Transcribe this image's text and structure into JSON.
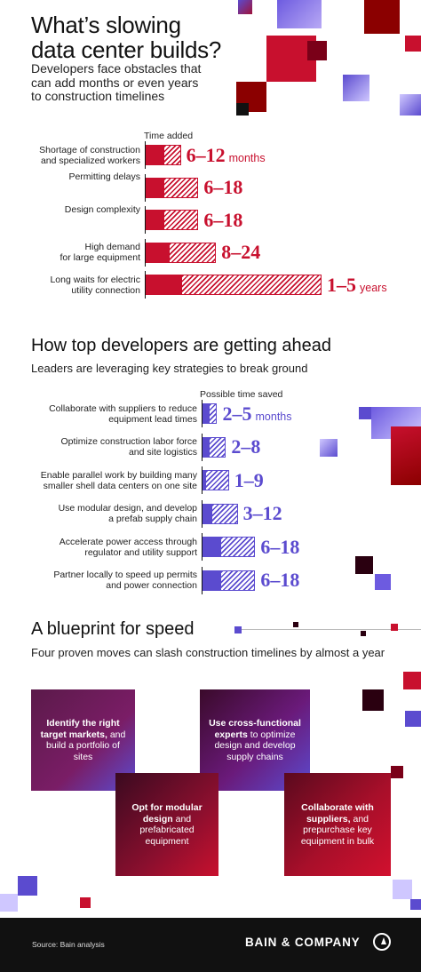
{
  "header": {
    "title_line1": "What’s slowing",
    "title_line2": "data center builds?",
    "subtitle_line1": "Developers face obstacles that",
    "subtitle_line2": "can add months or even years",
    "subtitle_line3": "to construction timelines"
  },
  "obstacles": {
    "column_header": "Time added",
    "rows": [
      {
        "label1": "Shortage of construction",
        "label2": "and specialized workers",
        "value": "6–12",
        "unit": "months",
        "min": 6,
        "max": 12
      },
      {
        "label1": "",
        "label2": "Permitting delays",
        "value": "6–18",
        "unit": "",
        "min": 6,
        "max": 18
      },
      {
        "label1": "",
        "label2": "Design complexity",
        "value": "6–18",
        "unit": "",
        "min": 6,
        "max": 18
      },
      {
        "label1": "High demand",
        "label2": "for large equipment",
        "value": "8–24",
        "unit": "",
        "min": 8,
        "max": 24
      },
      {
        "label1": "Long waits for electric",
        "label2": "utility connection",
        "value": "1–5",
        "unit": "years",
        "min": 12,
        "max": 60
      }
    ]
  },
  "strategies": {
    "title": "How top developers are getting ahead",
    "subtitle": "Leaders are leveraging key strategies to break ground",
    "column_header": "Possible time saved",
    "rows": [
      {
        "label1": "Collaborate with suppliers to reduce",
        "label2": "equipment lead times",
        "value": "2–5",
        "unit": "months",
        "min": 2,
        "max": 5
      },
      {
        "label1": "Optimize construction labor force",
        "label2": "and site logistics",
        "value": "2–8",
        "unit": "",
        "min": 2,
        "max": 8
      },
      {
        "label1": "Enable parallel work by building many",
        "label2": "smaller shell data centers on one site",
        "value": "1–9",
        "unit": "",
        "min": 1,
        "max": 9
      },
      {
        "label1": "Use modular design, and develop",
        "label2": "a prefab supply chain",
        "value": "3–12",
        "unit": "",
        "min": 3,
        "max": 12
      },
      {
        "label1": "Accelerate power access through",
        "label2": "regulator and utility support",
        "value": "6–18",
        "unit": "",
        "min": 6,
        "max": 18
      },
      {
        "label1": "Partner locally to speed up permits",
        "label2": "and power connection",
        "value": "6–18",
        "unit": "",
        "min": 6,
        "max": 18
      }
    ]
  },
  "blueprint": {
    "title": "A blueprint for speed",
    "subtitle": "Four proven moves can slash construction timelines by almost a year",
    "cards": [
      {
        "bold": "Identify the right target markets,",
        "rest": "and build a portfolio of sites"
      },
      {
        "bold": "Use cross-functional experts",
        "rest": "to optimize design and develop supply chains"
      },
      {
        "bold": "Opt for modular design",
        "rest": "and prefabricated equipment"
      },
      {
        "bold": "Collaborate with suppliers,",
        "rest": "and prepurchase key equipment in bulk"
      }
    ]
  },
  "footer": {
    "source": "Source: Bain analysis",
    "logo_text": "BAIN & COMPANY"
  },
  "colors": {
    "red": "#c8102e",
    "blue": "#5b4bcf",
    "dark": "#111111"
  }
}
